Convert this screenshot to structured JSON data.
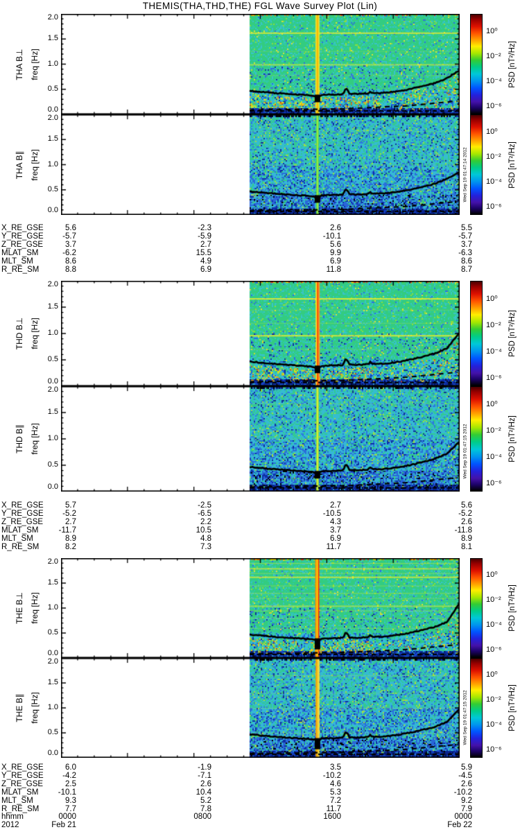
{
  "title": "THEMIS(THA,THD,THE) FGL Wave Survey Plot (Lin)",
  "freq_axis": {
    "label": "freq [Hz]",
    "ticks": [
      "2.0",
      "1.5",
      "1.0",
      "0.5",
      "0.0"
    ]
  },
  "colorbar": {
    "label": "PSD [nT²/Hz]",
    "ticks": [
      "10⁰",
      "10⁻²",
      "10⁻⁴",
      "10⁻⁶"
    ],
    "stops": [
      {
        "p": 0,
        "c": "#4a0000"
      },
      {
        "p": 5,
        "c": "#990000"
      },
      {
        "p": 12,
        "c": "#dd1100"
      },
      {
        "p": 19,
        "c": "#ff5500"
      },
      {
        "p": 26,
        "c": "#ffa500"
      },
      {
        "p": 32,
        "c": "#ffee00"
      },
      {
        "p": 39,
        "c": "#a8e800"
      },
      {
        "p": 46,
        "c": "#33cc33"
      },
      {
        "p": 53,
        "c": "#00cc88"
      },
      {
        "p": 60,
        "c": "#00c8d8"
      },
      {
        "p": 67,
        "c": "#0096ee"
      },
      {
        "p": 74,
        "c": "#0055ff"
      },
      {
        "p": 81,
        "c": "#2222dd"
      },
      {
        "p": 88,
        "c": "#4412aa"
      },
      {
        "p": 94,
        "c": "#1c0266"
      },
      {
        "p": 100,
        "c": "#000000"
      }
    ]
  },
  "groups": [
    {
      "probe": "THA",
      "timestamp": "Wed Sep 19 01:47:14 2012",
      "panels": [
        {
          "label": "THA B⊥"
        },
        {
          "label": "THA B∥"
        }
      ],
      "ephemeris": [
        {
          "label": "X_RE_GSE",
          "values": [
            "5.6",
            "-2.3",
            "2.6",
            "5.5"
          ]
        },
        {
          "label": "Y_RE_GSE",
          "values": [
            "-5.7",
            "-5.9",
            "-10.1",
            "-5.7"
          ]
        },
        {
          "label": "Z_RE_GSE",
          "values": [
            "3.7",
            "2.7",
            "5.6",
            "3.7"
          ]
        },
        {
          "label": "MLAT_SM",
          "values": [
            "-6.2",
            "15.5",
            "9.9",
            "-6.3"
          ]
        },
        {
          "label": "MLT_SM",
          "values": [
            "8.6",
            "4.9",
            "6.9",
            "8.6"
          ]
        },
        {
          "label": "R_RE_SM",
          "values": [
            "8.8",
            "6.9",
            "11.8",
            "8.7"
          ]
        }
      ]
    },
    {
      "probe": "THD",
      "timestamp": "Wed Sep 19 01:47:15 2012",
      "panels": [
        {
          "label": "THD B⊥"
        },
        {
          "label": "THD B∥"
        }
      ],
      "ephemeris": [
        {
          "label": "X_RE_GSE",
          "values": [
            "5.7",
            "-2.5",
            "2.7",
            "5.6"
          ]
        },
        {
          "label": "Y_RE_GSE",
          "values": [
            "-5.2",
            "-6.5",
            "-10.5",
            "-5.2"
          ]
        },
        {
          "label": "Z_RE_GSE",
          "values": [
            "2.7",
            "2.2",
            "4.3",
            "2.6"
          ]
        },
        {
          "label": "MLAT_SM",
          "values": [
            "-11.7",
            "10.5",
            "3.7",
            "-11.8"
          ]
        },
        {
          "label": "MLT_SM",
          "values": [
            "8.9",
            "4.8",
            "6.9",
            "8.9"
          ]
        },
        {
          "label": "R_RE_SM",
          "values": [
            "8.2",
            "7.3",
            "11.7",
            "8.1"
          ]
        }
      ]
    },
    {
      "probe": "THE",
      "timestamp": "Wed Sep 19 01:47:15 2012",
      "panels": [
        {
          "label": "THE B⊥"
        },
        {
          "label": "THE B∥"
        }
      ],
      "ephemeris": [
        {
          "label": "X_RE_GSE",
          "values": [
            "6.0",
            "-1.9",
            "3.5",
            "5.9"
          ]
        },
        {
          "label": "Y_RE_GSE",
          "values": [
            "-4.2",
            "-7.1",
            "-10.2",
            "-4.5"
          ]
        },
        {
          "label": "Z_RE_GSE",
          "values": [
            "2.5",
            "2.6",
            "4.6",
            "2.6"
          ]
        },
        {
          "label": "MLAT_SM",
          "values": [
            "-10.1",
            "10.4",
            "5.3",
            "-10.2"
          ]
        },
        {
          "label": "MLT_SM",
          "values": [
            "9.3",
            "5.2",
            "7.2",
            "9.2"
          ]
        },
        {
          "label": "R_RE_SM",
          "values": [
            "7.7",
            "7.8",
            "11.7",
            "7.9"
          ]
        }
      ]
    }
  ],
  "time_axis": {
    "rows": [
      {
        "label": "hhmm",
        "values": [
          "0000",
          "0800",
          "1600",
          "0000"
        ]
      },
      {
        "label": "2012",
        "values": [
          "Feb 21",
          "",
          "",
          "Feb 22"
        ]
      }
    ]
  },
  "chart_data": {
    "type": "heatmap",
    "title": "THEMIS(THA,THD,THE) FGL Wave Survey Plot (Lin)",
    "panels": [
      "THA B⊥",
      "THA B∥",
      "THD B⊥",
      "THD B∥",
      "THE B⊥",
      "THE B∥"
    ],
    "x_axis": {
      "label": "hhmm (UT)",
      "start": "2012 Feb 21 0000",
      "end": "2012 Feb 22 0000",
      "ticks": [
        "0000",
        "0800",
        "1600",
        "0000"
      ]
    },
    "y_axis": {
      "label": "freq [Hz]",
      "range": [
        0.0,
        2.0
      ]
    },
    "z_axis": {
      "label": "PSD [nT²/Hz]",
      "scale": "log",
      "tick_values": [
        1,
        0.01,
        0.0001,
        1e-06
      ]
    },
    "data_coverage": "spectrogram filled only from ~1120 UT Feb 21 to 0000 UT Feb 22; earlier interval blank",
    "features": {
      "bright_vertical_burst_UT": "~1525",
      "black_cutoff_curve_approx": {
        "hours_UT": [
          11.4,
          12,
          13,
          14,
          15,
          15.5,
          16,
          17,
          18,
          19,
          20,
          21,
          22,
          23,
          24
        ],
        "freq_hz": [
          0.47,
          0.44,
          0.41,
          0.39,
          0.37,
          0.36,
          0.4,
          0.4,
          0.41,
          0.43,
          0.46,
          0.51,
          0.58,
          0.7,
          0.95
        ]
      },
      "flat_dashed_line_hz": 0.07,
      "rising_dashed_line_hz": [
        0.09,
        0.27
      ],
      "low_freq_dark_band_hz": [
        0.0,
        0.15
      ],
      "horizontal_interference_lines_hz": [
        0.97,
        1.0,
        1.63,
        1.67,
        1.8
      ]
    }
  }
}
